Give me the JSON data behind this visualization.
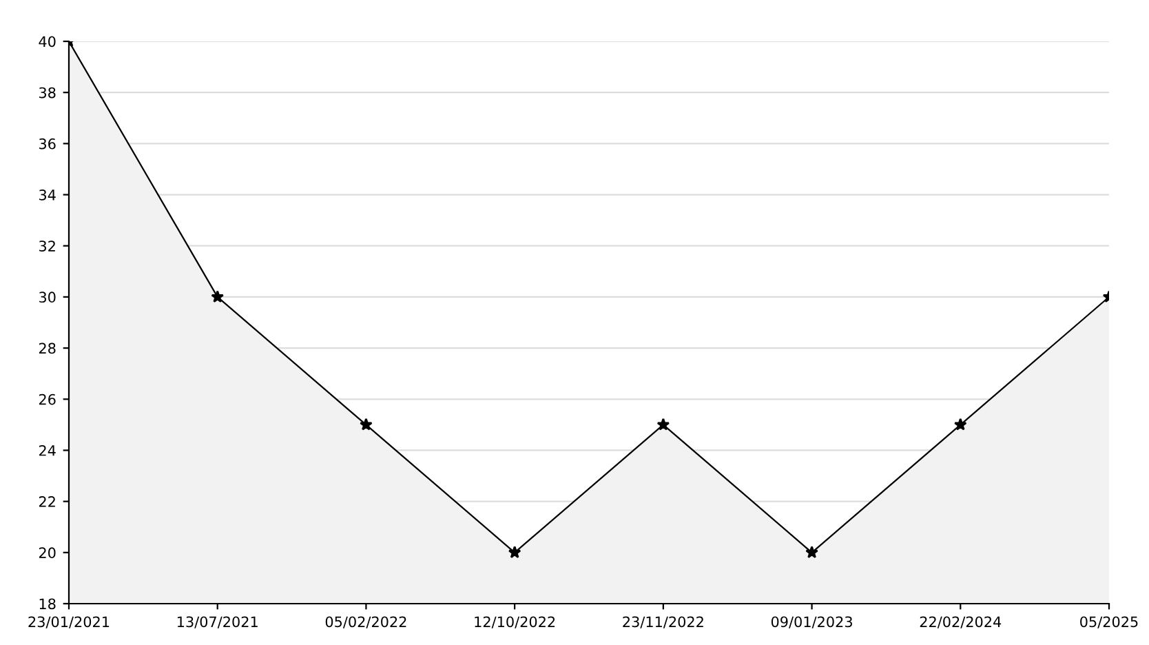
{
  "chart_data": {
    "type": "area",
    "categories": [
      "23/01/2021",
      "13/07/2021",
      "05/02/2022",
      "12/10/2022",
      "23/11/2022",
      "09/01/2023",
      "22/02/2024",
      "05/2025"
    ],
    "series": [
      {
        "color": "#000000",
        "values": [
          40,
          30,
          25,
          20,
          25,
          20,
          25,
          30
        ]
      }
    ],
    "ylim": [
      18,
      40
    ],
    "yticks": [
      18,
      20,
      22,
      24,
      26,
      28,
      30,
      32,
      34,
      36,
      38,
      40
    ],
    "grid": "y",
    "marker": "star",
    "line_style": "solid",
    "legend": false
  }
}
